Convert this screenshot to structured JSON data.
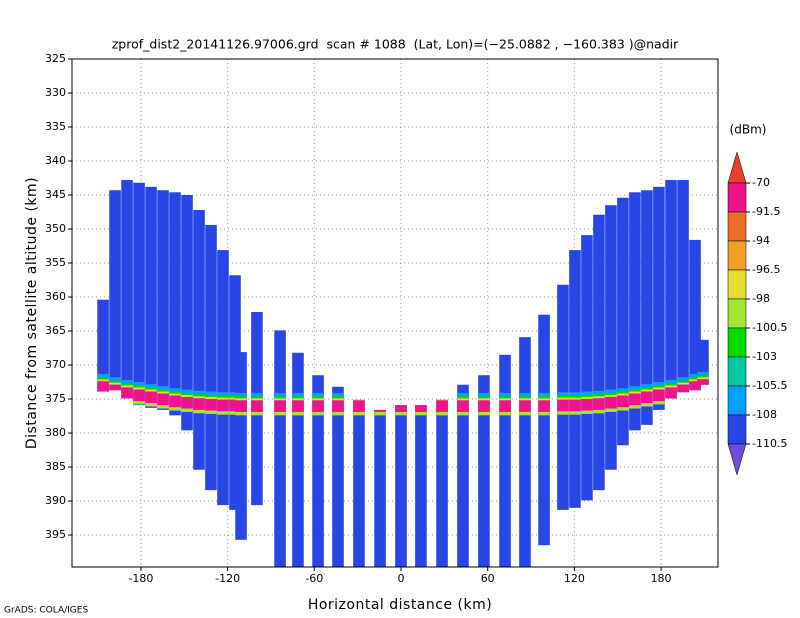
{
  "chart_data": {
    "type": "profile",
    "title": "zprof_dist2_20141126.97006.grd  scan # 1088  (Lat, Lon)=(−25.0882 , −160.383 )@nadir",
    "x_label": "Horizontal distance (km)",
    "y_label": "Distance from satellite altitude (km)",
    "footer": "GrADS: COLA/IGES",
    "xlim": [
      -227.7,
      219.4
    ],
    "ylim": [
      325,
      399.7
    ],
    "y_inverted": true,
    "xticks": [
      -180,
      -120,
      -60,
      0,
      60,
      120,
      180
    ],
    "yticks": [
      325,
      330,
      335,
      340,
      345,
      350,
      355,
      360,
      365,
      370,
      375,
      380,
      385,
      390,
      395
    ],
    "grid": true,
    "colorbar": {
      "label": "(dBm)",
      "levels": [
        -70,
        -91.5,
        -94,
        -96.5,
        -98,
        -100.5,
        -103,
        -105.5,
        -108,
        -110.5
      ],
      "colors": [
        "#e8402a",
        "#f0148c",
        "#eb6e28",
        "#f0a028",
        "#e6dc32",
        "#a0e632",
        "#00dc00",
        "#00c8a0",
        "#00a0ff",
        "#2846e6",
        "#6e4ce0"
      ]
    },
    "background_dbm": -109,
    "surface_layers": [
      {
        "from": -1.5,
        "to": -1.0,
        "dbm": -106
      },
      {
        "from": -1.0,
        "to": -0.7,
        "dbm": -101
      },
      {
        "from": -0.7,
        "to": -0.4,
        "dbm": -97
      },
      {
        "from": -0.4,
        "to": 1.3,
        "dbm": -80
      },
      {
        "from": 1.3,
        "to": 1.8,
        "dbm": -99
      }
    ],
    "beams": [
      {
        "x": -206.2,
        "top": 360.4,
        "bottom": 373.9,
        "surface": 372.8
      },
      {
        "x": -197.9,
        "top": 344.3,
        "bottom": 373.7,
        "surface": 373.3
      },
      {
        "x": -189.6,
        "top": 342.8,
        "bottom": 374.9,
        "surface": 373.7
      },
      {
        "x": -181.3,
        "top": 343.2,
        "bottom": 375.9,
        "surface": 374.0
      },
      {
        "x": -173.0,
        "top": 343.8,
        "bottom": 376.3,
        "surface": 374.3
      },
      {
        "x": -164.7,
        "top": 344.3,
        "bottom": 376.6,
        "surface": 374.6
      },
      {
        "x": -156.4,
        "top": 344.6,
        "bottom": 377.4,
        "surface": 374.9
      },
      {
        "x": -148.1,
        "top": 345.0,
        "bottom": 379.6,
        "surface": 375.1
      },
      {
        "x": -139.8,
        "top": 347.2,
        "bottom": 385.4,
        "surface": 375.3
      },
      {
        "x": -131.5,
        "top": 349.4,
        "bottom": 388.4,
        "surface": 375.4
      },
      {
        "x": -123.2,
        "top": 353.1,
        "bottom": 390.6,
        "surface": 375.5
      },
      {
        "x": -114.9,
        "top": 356.8,
        "bottom": 391.3,
        "surface": 375.5
      },
      {
        "x": -110.7,
        "top": 368.1,
        "bottom": 395.7,
        "surface": 375.6
      },
      {
        "x": -99.7,
        "top": 362.2,
        "bottom": 390.6,
        "surface": 375.6
      },
      {
        "x": -83.7,
        "top": 364.9,
        "bottom": 399.7,
        "surface": 375.6
      },
      {
        "x": -71.3,
        "top": 368.2,
        "bottom": 399.7,
        "surface": 375.6
      },
      {
        "x": -57.4,
        "top": 371.5,
        "bottom": 399.7,
        "surface": 375.6
      },
      {
        "x": -43.6,
        "top": 373.2,
        "bottom": 399.7,
        "surface": 375.6
      },
      {
        "x": -29.1,
        "top": 375.1,
        "bottom": 399.7,
        "surface": 375.6
      },
      {
        "x": -14.5,
        "top": 376.6,
        "bottom": 399.7,
        "surface": 375.6
      },
      {
        "x": 0,
        "top": 375.9,
        "bottom": 399.7,
        "surface": 375.6
      },
      {
        "x": 13.8,
        "top": 375.9,
        "bottom": 399.7,
        "surface": 375.6
      },
      {
        "x": 28.4,
        "top": 375.1,
        "bottom": 399.7,
        "surface": 375.6
      },
      {
        "x": 42.9,
        "top": 372.9,
        "bottom": 399.7,
        "surface": 375.6
      },
      {
        "x": 57.4,
        "top": 371.5,
        "bottom": 399.7,
        "surface": 375.6
      },
      {
        "x": 72.0,
        "top": 368.5,
        "bottom": 399.7,
        "surface": 375.6
      },
      {
        "x": 85.8,
        "top": 365.9,
        "bottom": 399.7,
        "surface": 375.6
      },
      {
        "x": 99.0,
        "top": 362.6,
        "bottom": 396.5,
        "surface": 375.6
      },
      {
        "x": 112.1,
        "top": 358.2,
        "bottom": 391.3,
        "surface": 375.5
      },
      {
        "x": 120.4,
        "top": 353.1,
        "bottom": 391.0,
        "surface": 375.5
      },
      {
        "x": 128.7,
        "top": 350.9,
        "bottom": 389.9,
        "surface": 375.4
      },
      {
        "x": 137.0,
        "top": 347.9,
        "bottom": 388.4,
        "surface": 375.3
      },
      {
        "x": 145.3,
        "top": 346.5,
        "bottom": 385.4,
        "surface": 375.1
      },
      {
        "x": 153.6,
        "top": 345.4,
        "bottom": 381.8,
        "surface": 374.9
      },
      {
        "x": 161.9,
        "top": 344.6,
        "bottom": 379.6,
        "surface": 374.6
      },
      {
        "x": 170.2,
        "top": 344.3,
        "bottom": 378.8,
        "surface": 374.3
      },
      {
        "x": 178.5,
        "top": 343.8,
        "bottom": 376.6,
        "surface": 374.0
      },
      {
        "x": 186.9,
        "top": 342.8,
        "bottom": 374.9,
        "surface": 373.7
      },
      {
        "x": 195.2,
        "top": 342.8,
        "bottom": 374.0,
        "surface": 373.3
      },
      {
        "x": 203.5,
        "top": 351.6,
        "bottom": 373.7,
        "surface": 372.8
      },
      {
        "x": 209.0,
        "top": 366.3,
        "bottom": 372.9,
        "surface": 372.5
      }
    ]
  }
}
